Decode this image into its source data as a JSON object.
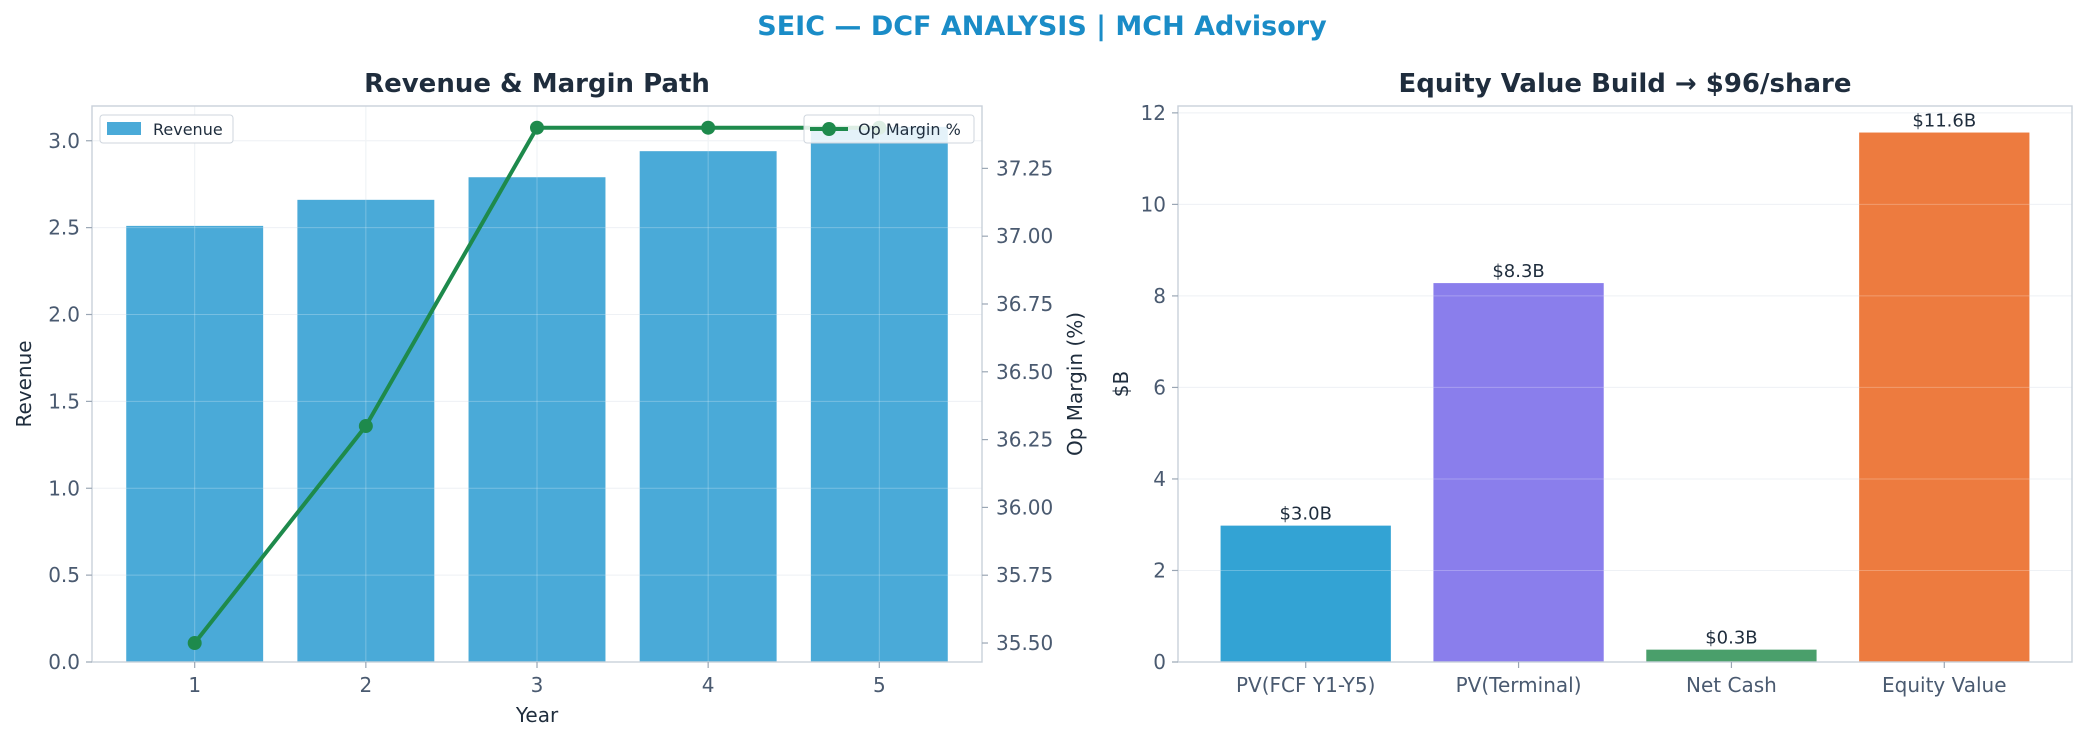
{
  "suptitle": "SEIC — DCF ANALYSIS | MCH Advisory",
  "chart_data": [
    {
      "type": "bar+line",
      "title": "Revenue & Margin Path",
      "xlabel": "Year",
      "ylabel": "Revenue",
      "y2label": "Op Margin (%)",
      "categories": [
        "1",
        "2",
        "3",
        "4",
        "5"
      ],
      "ylim": [
        0,
        3.2
      ],
      "y2lim": [
        35.43,
        37.48
      ],
      "yticks": [
        "0.0",
        "0.5",
        "1.0",
        "1.5",
        "2.0",
        "2.5",
        "3.0"
      ],
      "y2ticks": [
        "35.50",
        "35.75",
        "36.00",
        "36.25",
        "36.50",
        "36.75",
        "37.00",
        "37.25"
      ],
      "grid": true,
      "series": [
        {
          "name": "Revenue",
          "kind": "bar",
          "axis": "left",
          "color": "#4aaad8",
          "values": [
            2.51,
            2.66,
            2.79,
            2.94,
            3.08
          ]
        },
        {
          "name": "Op Margin %",
          "kind": "line",
          "axis": "right",
          "color": "#1e8a4c",
          "values": [
            35.5,
            36.3,
            37.4,
            37.4,
            37.4
          ]
        }
      ],
      "legend_left": "upper-left",
      "legend_right": "upper-right"
    },
    {
      "type": "bar",
      "title": "Equity Value Build → $96/share",
      "ylabel": "$B",
      "categories": [
        "PV(FCF Y1-Y5)",
        "PV(Terminal)",
        "Net Cash",
        "Equity Value"
      ],
      "values": [
        2.98,
        8.28,
        0.27,
        11.57
      ],
      "labels": [
        "$3.0B",
        "$8.3B",
        "$0.3B",
        "$11.6B"
      ],
      "colors": [
        "#33a3d4",
        "#8a7eec",
        "#4a9f6b",
        "#ed7b3f"
      ],
      "ylim": [
        0,
        12.15
      ],
      "yticks": [
        "0",
        "2",
        "4",
        "6",
        "8",
        "10",
        "12"
      ],
      "grid": true
    }
  ]
}
